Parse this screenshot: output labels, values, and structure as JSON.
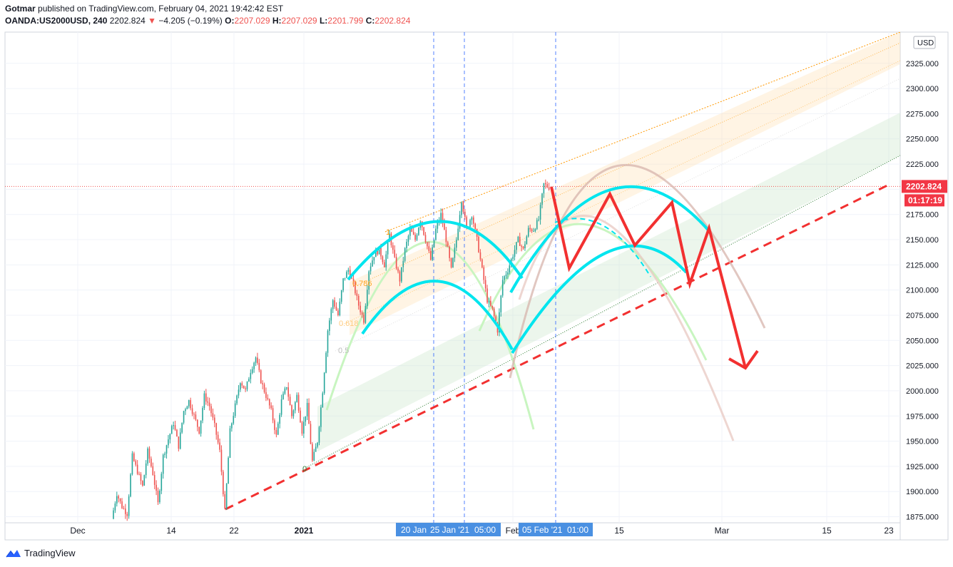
{
  "header": {
    "publisher": "Gotmar",
    "published_text": "published on TradingView.com, February 04, 2021 19:42:42 EST",
    "symbol": "OANDA:US2000USD, 240",
    "last": "2202.824",
    "change": "−4.205 (−0.19%)",
    "o_label": "O:",
    "o_value": "2207.029",
    "h_label": "H:",
    "h_value": "2207.029",
    "l_label": "L:",
    "l_value": "2201.799",
    "c_label": "C:",
    "c_value": "2202.824"
  },
  "footer": {
    "brand": "TradingView"
  },
  "colors": {
    "up": "#26a69a",
    "down": "#ef5350",
    "cyan": "#00e5ee",
    "forecast": "#f23030",
    "fib": "#ff9800"
  },
  "chart_data": {
    "type": "candlestick",
    "currency_label": "USD",
    "y_ticks": [
      "2325.000",
      "2300.000",
      "2275.000",
      "2250.000",
      "2225.000",
      "2200.000",
      "2175.000",
      "2150.000",
      "2125.000",
      "2100.000",
      "2075.000",
      "2050.000",
      "2025.000",
      "2000.000",
      "1975.000",
      "1950.000",
      "1925.000",
      "1900.000",
      "1875.000"
    ],
    "y_range": [
      1869,
      2356
    ],
    "x_ticks": [
      "Dec",
      "14",
      "22",
      "2021",
      "Feb",
      "15",
      "Mar",
      "15",
      "23"
    ],
    "x_highlights": [
      "20 Jan",
      "25 Jan '21",
      "05:00",
      "05 Feb '21",
      "01:00"
    ],
    "price_label": "2202.824",
    "countdown_label": "01:17:19",
    "last_price": 2202.824,
    "fib_labels": [
      "1",
      "0.786",
      "0.618",
      "0.5",
      "0"
    ],
    "price_path": [
      1873,
      1898,
      1885,
      1878,
      1935,
      1920,
      1905,
      1940,
      1918,
      1888,
      1935,
      1952,
      1968,
      1945,
      1980,
      1990,
      1975,
      1960,
      1995,
      1985,
      1965,
      1940,
      1880,
      1960,
      1985,
      2010,
      2000,
      2020,
      2033,
      2010,
      1995,
      1980,
      1955,
      1990,
      2005,
      1975,
      1995,
      1960,
      1985,
      1930,
      1950,
      2000,
      2060,
      2090,
      2075,
      2110,
      2120,
      2105,
      2085,
      2070,
      2120,
      2135,
      2140,
      2125,
      2155,
      2130,
      2110,
      2140,
      2160,
      2150,
      2170,
      2150,
      2130,
      2160,
      2175,
      2150,
      2120,
      2150,
      2190,
      2160,
      2175,
      2150,
      2120,
      2090,
      2080,
      2060,
      2110,
      2120,
      2135,
      2150,
      2140,
      2160,
      2160,
      2170,
      2205,
      2202
    ]
  }
}
